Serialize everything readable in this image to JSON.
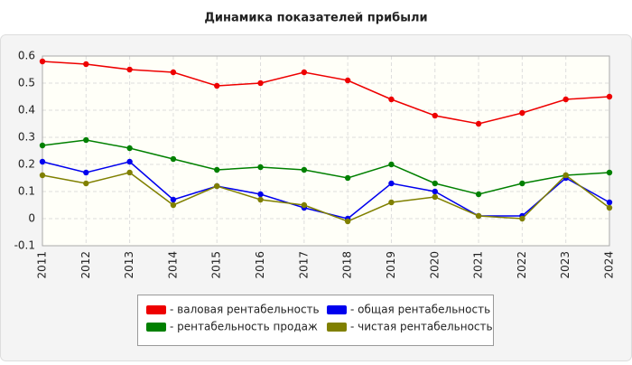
{
  "chart_data": {
    "type": "line",
    "title": "Динамика показателей прибыли",
    "categories": [
      "2011",
      "2012",
      "2013",
      "2014",
      "2015",
      "2016",
      "2017",
      "2018",
      "2019",
      "2020",
      "2021",
      "2022",
      "2023",
      "2024"
    ],
    "series": [
      {
        "name": "- валовая рентабельность",
        "color": "#ee0000",
        "values": [
          0.58,
          0.57,
          0.55,
          0.54,
          0.49,
          0.5,
          0.54,
          0.51,
          0.44,
          0.38,
          0.35,
          0.39,
          0.44,
          0.45
        ]
      },
      {
        "name": "- рентабельность продаж",
        "color": "#008000",
        "values": [
          0.27,
          0.29,
          0.26,
          0.22,
          0.18,
          0.19,
          0.18,
          0.15,
          0.2,
          0.13,
          0.09,
          0.13,
          0.16,
          0.17
        ]
      },
      {
        "name": "- общая рентабельность",
        "color": "#0000ee",
        "values": [
          0.21,
          0.17,
          0.21,
          0.07,
          0.12,
          0.09,
          0.04,
          0,
          0.13,
          0.1,
          0.01,
          0.01,
          0.15,
          0.06
        ]
      },
      {
        "name": "- чистая рентабельность",
        "color": "#808000",
        "values": [
          0.16,
          0.13,
          0.17,
          0.05,
          0.12,
          0.07,
          0.05,
          -0.01,
          0.06,
          0.08,
          0.01,
          0,
          0.16,
          0.04
        ]
      }
    ],
    "ylim": [
      -0.1,
      0.6
    ],
    "yticks": [
      -0.1,
      0,
      0.1,
      0.2,
      0.3,
      0.4,
      0.5,
      0.6
    ],
    "grid": true
  }
}
